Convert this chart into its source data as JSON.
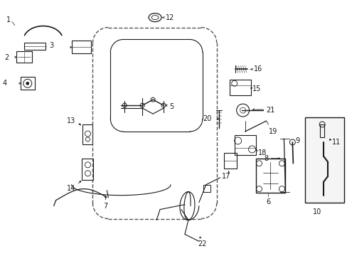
{
  "bg_color": "#ffffff",
  "line_color": "#1a1a1a",
  "dashed_color": "#555555",
  "fig_width": 4.89,
  "fig_height": 3.6,
  "dpi": 100
}
